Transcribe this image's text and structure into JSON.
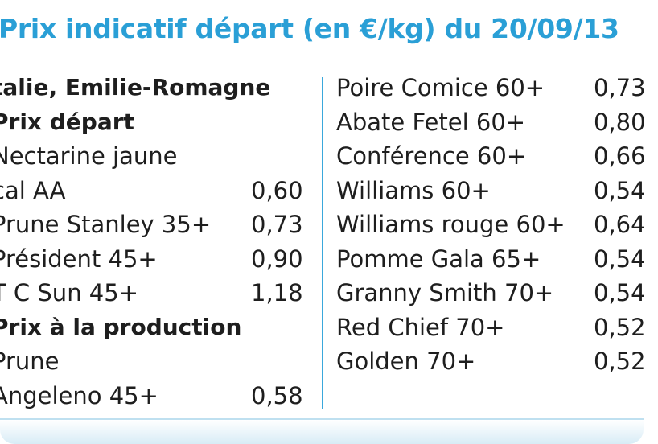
{
  "title": "Prix indicatif départ (en €/kg) du 20/09/13",
  "left_column": [
    {
      "label": "talie, Emilie-Romagne",
      "price": "",
      "heading": true
    },
    {
      "label": "Prix départ",
      "price": "",
      "heading": true
    },
    {
      "label": "Nectarine jaune",
      "price": "",
      "heading": false
    },
    {
      "label": "cal AA",
      "price": "0,60",
      "heading": false
    },
    {
      "label": "Prune Stanley 35+",
      "price": "0,73",
      "heading": false
    },
    {
      "label": "Président 45+",
      "price": "0,90",
      "heading": false
    },
    {
      "label": "T C Sun 45+",
      "price": "1,18",
      "heading": false
    },
    {
      "label": "Prix à la production",
      "price": "",
      "heading": true
    },
    {
      "label": "Prune",
      "price": "",
      "heading": false
    },
    {
      "label": "Angeleno 45+",
      "price": "0,58",
      "heading": false
    }
  ],
  "right_column": [
    {
      "label": "Poire Comice 60+",
      "price": "0,73"
    },
    {
      "label": "Abate Fetel 60+",
      "price": "0,80"
    },
    {
      "label": "Conférence 60+",
      "price": "0,66"
    },
    {
      "label": "Williams 60+",
      "price": "0,54"
    },
    {
      "label": "Williams rouge 60+",
      "price": "0,64"
    },
    {
      "label": "Pomme Gala 65+",
      "price": "0,54"
    },
    {
      "label": "Granny Smith 70+",
      "price": "0,54"
    },
    {
      "label": "Red Chief 70+",
      "price": "0,52"
    },
    {
      "label": "Golden 70+",
      "price": "0,52"
    }
  ],
  "colors": {
    "title": "#2a9fd6",
    "divider": "#3aa8dc",
    "text": "#1e1e1e"
  }
}
